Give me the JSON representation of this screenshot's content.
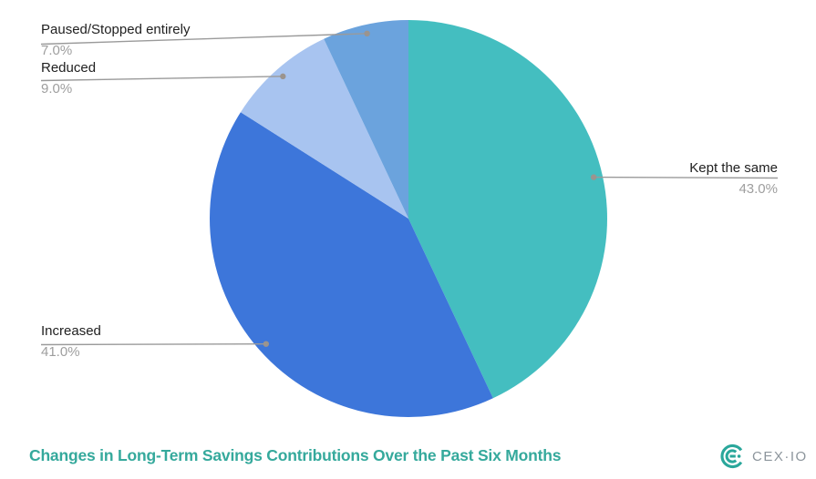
{
  "title": {
    "text": "Changes in Long-Term Savings Contributions Over the Past Six Months",
    "color": "#35a99c"
  },
  "brand": {
    "name": "CEX·IO",
    "logo_color": "#2aa79b",
    "text_color": "#8c959c"
  },
  "chart_data": {
    "type": "pie",
    "title": "Changes in Long-Term Savings Contributions Over the Past Six Months",
    "start_angle_deg": 0,
    "direction": "clockwise",
    "legend_position": "none",
    "labels_style": "outside-callouts",
    "slices": [
      {
        "label": "Kept the same",
        "value": 43.0,
        "display_value": "43.0%",
        "color": "#44bec0"
      },
      {
        "label": "Increased",
        "value": 41.0,
        "display_value": "41.0%",
        "color": "#3d76da"
      },
      {
        "label": "Reduced",
        "value": 9.0,
        "display_value": "9.0%",
        "color": "#a8c4f0"
      },
      {
        "label": "Paused/Stopped entirely",
        "value": 7.0,
        "display_value": "7.0%",
        "color": "#6ba3dd"
      }
    ],
    "callout_line_color": "#9a9a9a",
    "callout_dot_color": "#9b948e",
    "label_color": "#212121",
    "value_color": "#9e9e9e",
    "background": "#ffffff"
  }
}
